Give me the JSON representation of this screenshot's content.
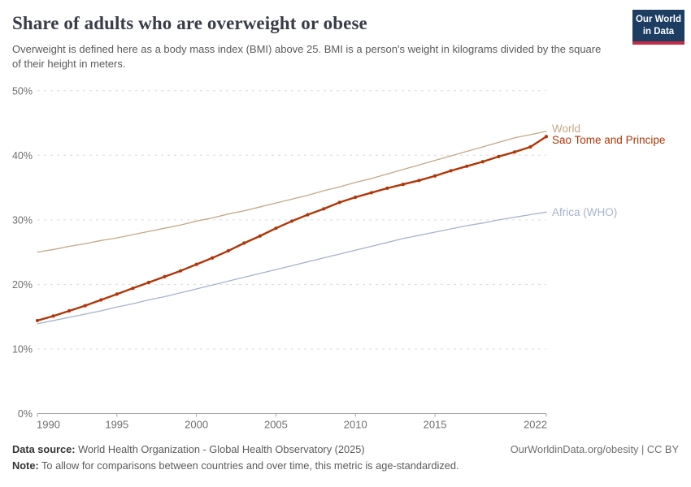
{
  "header": {
    "title": "Share of adults who are overweight or obese",
    "subtitle": "Overweight is defined here as a body mass index (BMI) above 25. BMI is a person's weight in kilograms divided by the square of their height in meters.",
    "logo": {
      "line1": "Our World",
      "line2": "in Data"
    },
    "logo_colors": {
      "background": "#1d3d63",
      "stripe": "#c32c46"
    }
  },
  "footer": {
    "data_source_label": "Data source:",
    "data_source_value": " World Health Organization - Global Health Observatory (2025)",
    "note_label": "Note:",
    "note_value": " To allow for comparisons between countries and over time, this metric is age-standardized.",
    "link": "OurWorldinData.org/obesity | CC BY"
  },
  "chart_data": {
    "type": "line",
    "title": "Share of adults who are overweight or obese",
    "x_range": [
      1990,
      2022
    ],
    "ylim": [
      0,
      50
    ],
    "y_ticks": [
      0,
      10,
      20,
      30,
      40,
      50
    ],
    "y_tick_suffix": "%",
    "x_ticks": [
      1990,
      1995,
      2000,
      2005,
      2010,
      2015,
      2022
    ],
    "grid": "horizontal-dashed",
    "legend_position": "right-end-labels",
    "x": [
      1990,
      1991,
      1992,
      1993,
      1994,
      1995,
      1996,
      1997,
      1998,
      1999,
      2000,
      2001,
      2002,
      2003,
      2004,
      2005,
      2006,
      2007,
      2008,
      2009,
      2010,
      2011,
      2012,
      2013,
      2014,
      2015,
      2016,
      2017,
      2018,
      2019,
      2020,
      2021,
      2022
    ],
    "series": [
      {
        "name": "World",
        "color": "#c5a886",
        "line_width": 1.3,
        "markers": false,
        "label_dy": -3.5,
        "values": [
          25.0,
          25.4,
          25.9,
          26.3,
          26.8,
          27.2,
          27.7,
          28.2,
          28.7,
          29.2,
          29.8,
          30.3,
          30.9,
          31.4,
          32.0,
          32.6,
          33.2,
          33.8,
          34.5,
          35.1,
          35.8,
          36.4,
          37.1,
          37.8,
          38.5,
          39.2,
          39.9,
          40.6,
          41.3,
          42.0,
          42.7,
          43.2,
          43.7
        ]
      },
      {
        "name": "Africa (WHO)",
        "color": "#a6b3cc",
        "line_width": 1.3,
        "markers": false,
        "label_dy": 0,
        "values": [
          13.9,
          14.4,
          14.9,
          15.4,
          15.9,
          16.5,
          17.0,
          17.6,
          18.1,
          18.7,
          19.3,
          19.9,
          20.5,
          21.1,
          21.7,
          22.3,
          22.9,
          23.5,
          24.1,
          24.7,
          25.3,
          25.9,
          26.5,
          27.1,
          27.6,
          28.1,
          28.6,
          29.1,
          29.5,
          30.0,
          30.4,
          30.8,
          31.2
        ]
      },
      {
        "name": "Sao Tome and Principe",
        "color": "#b13507",
        "line_width": 2.4,
        "markers": true,
        "label_dy": 4.5,
        "values": [
          14.4,
          15.1,
          15.9,
          16.7,
          17.6,
          18.5,
          19.4,
          20.3,
          21.2,
          22.1,
          23.1,
          24.1,
          25.2,
          26.4,
          27.5,
          28.7,
          29.8,
          30.8,
          31.7,
          32.7,
          33.5,
          34.2,
          34.9,
          35.5,
          36.1,
          36.8,
          37.6,
          38.3,
          39.0,
          39.8,
          40.5,
          41.3,
          42.9
        ]
      }
    ]
  }
}
